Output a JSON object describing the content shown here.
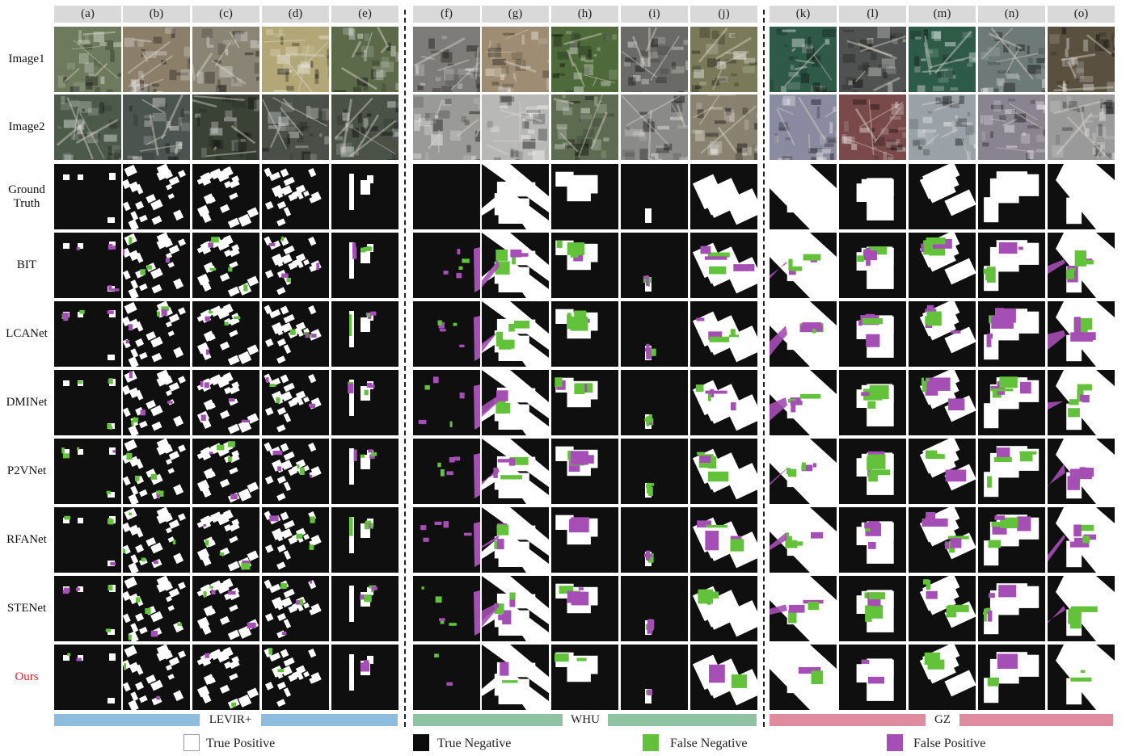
{
  "columns": [
    "(a)",
    "(b)",
    "(c)",
    "(d)",
    "(e)",
    "(f)",
    "(g)",
    "(h)",
    "(i)",
    "(j)",
    "(k)",
    "(l)",
    "(m)",
    "(n)",
    "(o)"
  ],
  "rows": [
    "Image1",
    "Image2",
    "Ground\nTruth",
    "BIT",
    "LCANet",
    "DMINet",
    "P2VNet",
    "RFANet",
    "STENet",
    "Ours"
  ],
  "datasets": [
    "LEVIR+",
    "WHU",
    "GZ"
  ],
  "legend": [
    {
      "label": "True Positive",
      "color": "#ffffff"
    },
    {
      "label": "True Negative",
      "color": "#0c0c0c"
    },
    {
      "label": "False Negative",
      "color": "#62c23a"
    },
    {
      "label": "False Positive",
      "color": "#a54eb5"
    }
  ],
  "colors": {
    "tp": "#ffffff",
    "tn": "#0e0f0e",
    "fn": "#62c23a",
    "fp": "#a54eb5",
    "levir_bar": "#8dbcde",
    "whu_bar": "#8fc3a3",
    "gz_bar": "#de8c9e",
    "ours_label": "#e8232a"
  }
}
